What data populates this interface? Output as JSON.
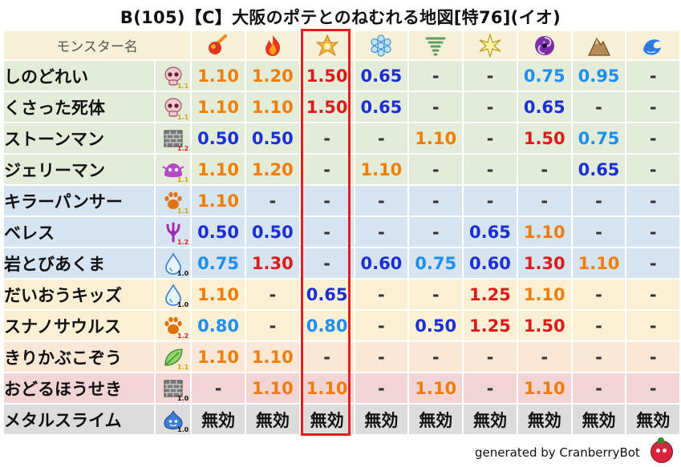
{
  "title": "B(105)【C】大阪のポテとのねむれる地図[特76](イオ)",
  "header": {
    "name_label": "モンスター名",
    "elements": [
      {
        "icon": "meteor-fire-icon"
      },
      {
        "icon": "flame-icon"
      },
      {
        "icon": "explosion-icon"
      },
      {
        "icon": "ice-crystal-icon"
      },
      {
        "icon": "tornado-icon"
      },
      {
        "icon": "lightning-star-icon"
      },
      {
        "icon": "dark-swirl-icon"
      },
      {
        "icon": "rock-mountain-icon"
      },
      {
        "icon": "water-wave-icon"
      }
    ]
  },
  "rows": [
    {
      "name": "しのどれい",
      "type_icon": "skull-icon",
      "mult": "1.1",
      "bg": "#e3ecd9",
      "cells": [
        {
          "t": "1.10",
          "c": "orange"
        },
        {
          "t": "1.20",
          "c": "orange"
        },
        {
          "t": "1.50",
          "c": "red"
        },
        {
          "t": "0.65",
          "c": "blue"
        },
        {
          "t": "-",
          "c": "dash"
        },
        {
          "t": "-",
          "c": "dash"
        },
        {
          "t": "0.75",
          "c": "lblue"
        },
        {
          "t": "0.95",
          "c": "lblue"
        },
        {
          "t": "-",
          "c": "dash"
        }
      ]
    },
    {
      "name": "くさった死体",
      "type_icon": "skull-icon",
      "mult": "1.1",
      "bg": "#e3ecd9",
      "cells": [
        {
          "t": "1.10",
          "c": "orange"
        },
        {
          "t": "1.10",
          "c": "orange"
        },
        {
          "t": "1.50",
          "c": "red"
        },
        {
          "t": "0.65",
          "c": "blue"
        },
        {
          "t": "-",
          "c": "dash"
        },
        {
          "t": "-",
          "c": "dash"
        },
        {
          "t": "0.65",
          "c": "blue"
        },
        {
          "t": "-",
          "c": "dash"
        },
        {
          "t": "-",
          "c": "dash"
        }
      ]
    },
    {
      "name": "ストーンマン",
      "type_icon": "brick-wall-icon",
      "mult": "1.2",
      "bg": "#e3ecd9",
      "cells": [
        {
          "t": "0.50",
          "c": "blue"
        },
        {
          "t": "0.50",
          "c": "blue"
        },
        {
          "t": "-",
          "c": "dash"
        },
        {
          "t": "-",
          "c": "dash"
        },
        {
          "t": "1.10",
          "c": "orange"
        },
        {
          "t": "-",
          "c": "dash"
        },
        {
          "t": "1.50",
          "c": "red"
        },
        {
          "t": "0.75",
          "c": "lblue"
        },
        {
          "t": "-",
          "c": "dash"
        }
      ]
    },
    {
      "name": "ジェリーマン",
      "type_icon": "slime-creature-icon",
      "mult": "1.1",
      "bg": "#e3ecd9",
      "cells": [
        {
          "t": "1.10",
          "c": "orange"
        },
        {
          "t": "1.20",
          "c": "orange"
        },
        {
          "t": "-",
          "c": "dash"
        },
        {
          "t": "1.10",
          "c": "orange"
        },
        {
          "t": "-",
          "c": "dash"
        },
        {
          "t": "-",
          "c": "dash"
        },
        {
          "t": "-",
          "c": "dash"
        },
        {
          "t": "0.65",
          "c": "blue"
        },
        {
          "t": "-",
          "c": "dash"
        }
      ]
    },
    {
      "name": "キラーパンサー",
      "type_icon": "paw-icon",
      "mult": "1.1",
      "bg": "#d6e3f1",
      "cells": [
        {
          "t": "1.10",
          "c": "orange"
        },
        {
          "t": "-",
          "c": "dash"
        },
        {
          "t": "-",
          "c": "dash"
        },
        {
          "t": "-",
          "c": "dash"
        },
        {
          "t": "-",
          "c": "dash"
        },
        {
          "t": "-",
          "c": "dash"
        },
        {
          "t": "-",
          "c": "dash"
        },
        {
          "t": "-",
          "c": "dash"
        },
        {
          "t": "-",
          "c": "dash"
        }
      ]
    },
    {
      "name": "ベレス",
      "type_icon": "demon-trident-icon",
      "mult": "1.2",
      "bg": "#d6e3f1",
      "cells": [
        {
          "t": "0.50",
          "c": "blue"
        },
        {
          "t": "0.50",
          "c": "blue"
        },
        {
          "t": "-",
          "c": "dash"
        },
        {
          "t": "-",
          "c": "dash"
        },
        {
          "t": "-",
          "c": "dash"
        },
        {
          "t": "0.65",
          "c": "blue"
        },
        {
          "t": "1.10",
          "c": "orange"
        },
        {
          "t": "-",
          "c": "dash"
        },
        {
          "t": "-",
          "c": "dash"
        }
      ]
    },
    {
      "name": "岩とびあくま",
      "type_icon": "water-drop-icon",
      "mult": "1.0",
      "bg": "#d6e3f1",
      "cells": [
        {
          "t": "0.75",
          "c": "lblue"
        },
        {
          "t": "1.30",
          "c": "red"
        },
        {
          "t": "-",
          "c": "dash"
        },
        {
          "t": "0.60",
          "c": "blue"
        },
        {
          "t": "0.75",
          "c": "lblue"
        },
        {
          "t": "0.60",
          "c": "blue"
        },
        {
          "t": "1.30",
          "c": "red"
        },
        {
          "t": "1.10",
          "c": "orange"
        },
        {
          "t": "-",
          "c": "dash"
        }
      ]
    },
    {
      "name": "だいおうキッズ",
      "type_icon": "water-drop-icon",
      "mult": "1.0",
      "bg": "#fbf0d4",
      "cells": [
        {
          "t": "1.10",
          "c": "orange"
        },
        {
          "t": "-",
          "c": "dash"
        },
        {
          "t": "0.65",
          "c": "blue"
        },
        {
          "t": "-",
          "c": "dash"
        },
        {
          "t": "-",
          "c": "dash"
        },
        {
          "t": "1.25",
          "c": "red"
        },
        {
          "t": "1.10",
          "c": "orange"
        },
        {
          "t": "-",
          "c": "dash"
        },
        {
          "t": "-",
          "c": "dash"
        }
      ]
    },
    {
      "name": "スナノサウルス",
      "type_icon": "paw-icon",
      "mult": "1.2",
      "bg": "#fbf0d4",
      "cells": [
        {
          "t": "0.80",
          "c": "lblue"
        },
        {
          "t": "-",
          "c": "dash"
        },
        {
          "t": "0.80",
          "c": "lblue"
        },
        {
          "t": "-",
          "c": "dash"
        },
        {
          "t": "0.50",
          "c": "blue"
        },
        {
          "t": "1.25",
          "c": "red"
        },
        {
          "t": "1.50",
          "c": "red"
        },
        {
          "t": "-",
          "c": "dash"
        },
        {
          "t": "-",
          "c": "dash"
        }
      ]
    },
    {
      "name": "きりかぶこぞう",
      "type_icon": "leaf-icon",
      "mult": "1.1",
      "bg": "#fbe7d6",
      "cells": [
        {
          "t": "1.10",
          "c": "orange"
        },
        {
          "t": "1.10",
          "c": "orange"
        },
        {
          "t": "-",
          "c": "dash"
        },
        {
          "t": "-",
          "c": "dash"
        },
        {
          "t": "-",
          "c": "dash"
        },
        {
          "t": "-",
          "c": "dash"
        },
        {
          "t": "-",
          "c": "dash"
        },
        {
          "t": "-",
          "c": "dash"
        },
        {
          "t": "-",
          "c": "dash"
        }
      ]
    },
    {
      "name": "おどるほうせき",
      "type_icon": "brick-wall-icon",
      "mult": "1.0",
      "bg": "#f2d4d4",
      "cells": [
        {
          "t": "-",
          "c": "dash"
        },
        {
          "t": "1.10",
          "c": "orange"
        },
        {
          "t": "1.10",
          "c": "orange"
        },
        {
          "t": "-",
          "c": "dash"
        },
        {
          "t": "1.10",
          "c": "orange"
        },
        {
          "t": "-",
          "c": "dash"
        },
        {
          "t": "1.10",
          "c": "orange"
        },
        {
          "t": "-",
          "c": "dash"
        },
        {
          "t": "-",
          "c": "dash"
        }
      ]
    },
    {
      "name": "メタルスライム",
      "type_icon": "metal-slime-icon",
      "mult": "1.0",
      "bg": "#dcdcdc",
      "cells": [
        {
          "t": "無効",
          "c": "muko"
        },
        {
          "t": "無効",
          "c": "muko"
        },
        {
          "t": "無効",
          "c": "muko"
        },
        {
          "t": "無効",
          "c": "muko"
        },
        {
          "t": "無効",
          "c": "muko"
        },
        {
          "t": "無効",
          "c": "muko"
        },
        {
          "t": "無効",
          "c": "muko"
        },
        {
          "t": "無効",
          "c": "muko"
        },
        {
          "t": "無効",
          "c": "muko"
        }
      ]
    }
  ],
  "mult_colors": {
    "1.0": "#111111",
    "1.1": "#d4a20a",
    "1.2": "#e02020"
  },
  "footer": {
    "text": "generated by CranberryBot",
    "logo_icon": "cranberry-bot-icon"
  }
}
